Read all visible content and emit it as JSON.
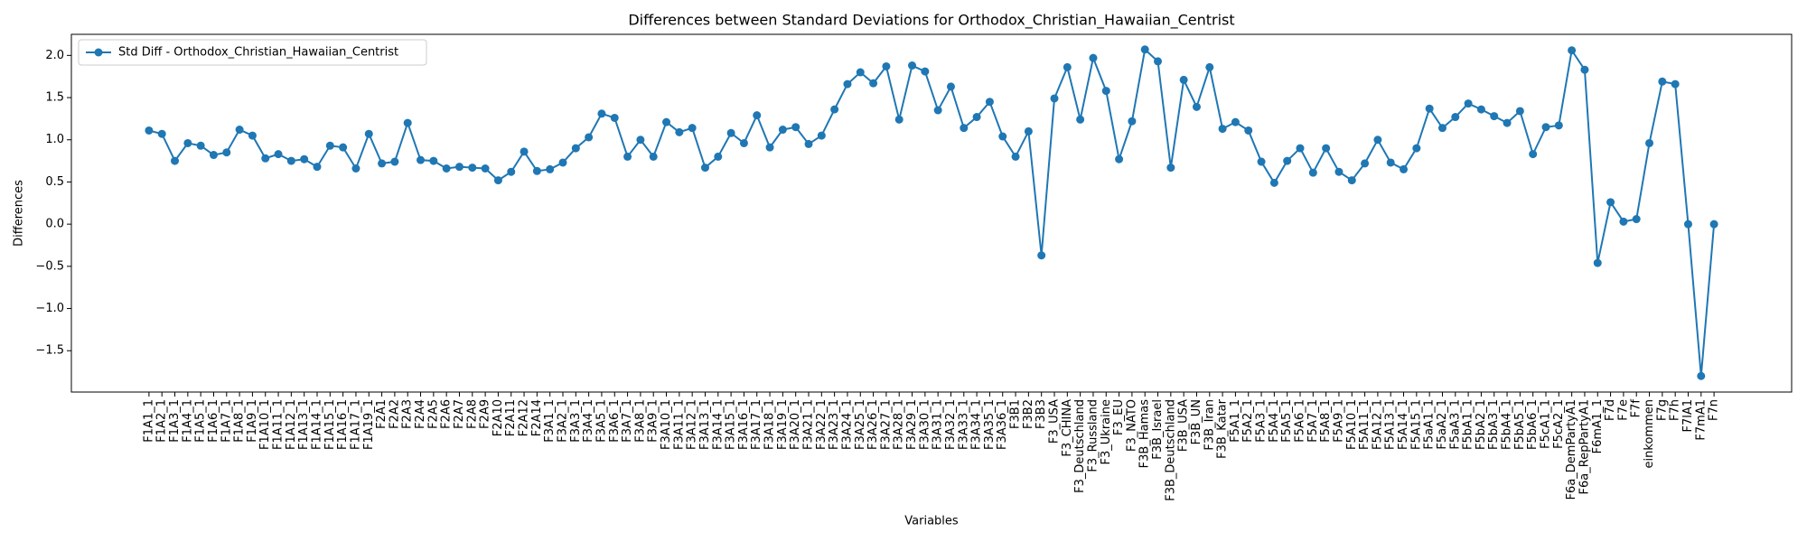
{
  "chart_data": {
    "type": "line",
    "title": "Differences between Standard Deviations for Orthodox_Christian_Hawaiian_Centrist",
    "xlabel": "Variables",
    "ylabel": "Differences",
    "categories": [
      "F1A1_1",
      "F1A2_1",
      "F1A3_1",
      "F1A4_1",
      "F1A5_1",
      "F1A6_1",
      "F1A7_1",
      "F1A8_1",
      "F1A9_1",
      "F1A10_1",
      "F1A11_1",
      "F1A12_1",
      "F1A13_1",
      "F1A14_1",
      "F1A15_1",
      "F1A16_1",
      "F1A17_1",
      "F1A19_1",
      "F2A1",
      "F2A2",
      "F2A3",
      "F2A4",
      "F2A5",
      "F2A6",
      "F2A7",
      "F2A8",
      "F2A9",
      "F2A10",
      "F2A11",
      "F2A12",
      "F2A14",
      "F3A1_1",
      "F3A2_1",
      "F3A3_1",
      "F3A4_1",
      "F3A5_1",
      "F3A6_1",
      "F3A7_1",
      "F3A8_1",
      "F3A9_1",
      "F3A10_1",
      "F3A11_1",
      "F3A12_1",
      "F3A13_1",
      "F3A14_1",
      "F3A15_1",
      "F3A16_1",
      "F3A17_1",
      "F3A18_1",
      "F3A19_1",
      "F3A20_1",
      "F3A21_1",
      "F3A22_1",
      "F3A23_1",
      "F3A24_1",
      "F3A25_1",
      "F3A26_1",
      "F3A27_1",
      "F3A28_1",
      "F3A29_1",
      "F3A30_1",
      "F3A31_1",
      "F3A32_1",
      "F3A33_1",
      "F3A34_1",
      "F3A35_1",
      "F3A36_1",
      "F3B1",
      "F3B2",
      "F3B3",
      "F3_USA",
      "F3_CHINA",
      "F3_Deutschland",
      "F3_Russland",
      "F3_Ukraine",
      "F3_EU",
      "F3_NATO",
      "F3B_Hamas",
      "F3B_Israel",
      "F3B_Deutschland",
      "F3B_USA",
      "F3B_UN",
      "F3B_Iran",
      "F3B_Katar",
      "F5A1_1",
      "F5A2_1",
      "F5A3_1",
      "F5A4_1",
      "F5A5_1",
      "F5A6_1",
      "F5A7_1",
      "F5A8_1",
      "F5A9_1",
      "F5A10_1",
      "F5A11_1",
      "F5A12_1",
      "F5A13_1",
      "F5A14_1",
      "F5A15_1",
      "F5aA1_1",
      "F5aA2_1",
      "F5aA3_1",
      "F5bA1_1",
      "F5bA2_1",
      "F5bA3_1",
      "F5bA4_1",
      "F5bA5_1",
      "F5bA6_1",
      "F5cA1_1",
      "F5cA2_1",
      "F6a_DemPartyA1",
      "F6a_RepPartyA1",
      "F6mA1_1",
      "F7d",
      "F7e",
      "F7f",
      "einkommen",
      "F7g",
      "F7h",
      "F7lA1",
      "F7mA1",
      "F7n"
    ],
    "series": [
      {
        "name": "Std Diff - Orthodox_Christian_Hawaiian_Centrist",
        "color": "#1f77b4",
        "values": [
          1.11,
          1.07,
          0.75,
          0.96,
          0.93,
          0.82,
          0.85,
          1.12,
          1.05,
          0.78,
          0.83,
          0.75,
          0.77,
          0.68,
          0.93,
          0.91,
          0.66,
          1.07,
          0.72,
          0.74,
          1.2,
          0.76,
          0.75,
          0.66,
          0.68,
          0.67,
          0.66,
          0.52,
          0.62,
          0.86,
          0.63,
          0.65,
          0.73,
          0.9,
          1.03,
          1.31,
          1.26,
          0.8,
          1.0,
          0.8,
          1.21,
          1.09,
          1.14,
          0.67,
          0.8,
          1.08,
          0.96,
          1.29,
          0.91,
          1.12,
          1.15,
          0.95,
          1.05,
          1.36,
          1.66,
          1.8,
          1.67,
          1.87,
          1.24,
          1.88,
          1.81,
          1.35,
          1.63,
          1.14,
          1.27,
          1.45,
          1.04,
          0.8,
          1.1,
          -0.37,
          1.49,
          1.86,
          1.24,
          1.97,
          1.58,
          0.77,
          1.22,
          2.07,
          1.93,
          0.67,
          1.71,
          1.39,
          1.86,
          1.13,
          1.21,
          1.11,
          0.74,
          0.49,
          0.75,
          0.9,
          0.61,
          0.9,
          0.62,
          0.52,
          0.72,
          1.0,
          0.73,
          0.65,
          0.9,
          1.37,
          1.14,
          1.27,
          1.43,
          1.36,
          1.28,
          1.2,
          1.34,
          0.83,
          1.15,
          1.17,
          2.06,
          1.83,
          -0.46,
          0.26,
          0.03,
          0.06,
          0.96,
          1.69,
          1.66,
          0.0,
          -1.8,
          0.0
        ]
      }
    ],
    "ylim": [
      -1.99,
      2.25
    ],
    "yticks": [
      {
        "value": -1.5,
        "label": "−1.5"
      },
      {
        "value": -1.0,
        "label": "−1.0"
      },
      {
        "value": -0.5,
        "label": "−0.5"
      },
      {
        "value": 0,
        "label": "0.0"
      },
      {
        "value": 0.5,
        "label": "0.5"
      },
      {
        "value": 1,
        "label": "1.0"
      },
      {
        "value": 1.5,
        "label": "1.5"
      },
      {
        "value": 2,
        "label": "2.0"
      }
    ],
    "legend": "upper left",
    "grid": false
  }
}
